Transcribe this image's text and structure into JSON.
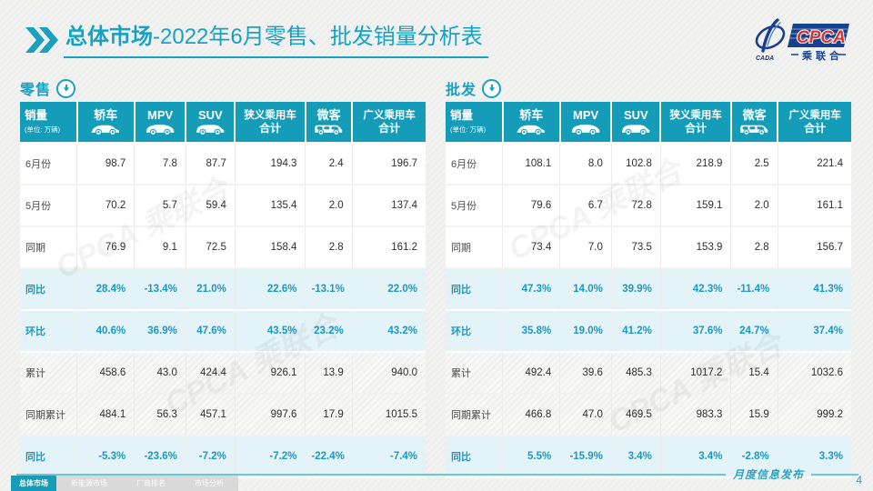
{
  "header": {
    "title_bold": "总体市场",
    "title_rest": "-2022年6月零售、批发销量分析表",
    "logo": {
      "cada": "CADA",
      "cpca": "CPCA",
      "subtitle": "乘联合"
    }
  },
  "watermark": {
    "text": "CPCA 乘联合"
  },
  "tables": [
    {
      "id": "retail",
      "section_label": "零售",
      "columns": [
        {
          "label": "销量",
          "sub": "(单位: 万辆)",
          "icon": null
        },
        {
          "label": "轿车",
          "icon": "sedan-icon"
        },
        {
          "label": "MPV",
          "icon": "mpv-icon"
        },
        {
          "label": "SUV",
          "icon": "suv-icon"
        },
        {
          "label": "狭义乘用车",
          "label2": "合计",
          "icon": null
        },
        {
          "label": "微客",
          "icon": "van-icon"
        },
        {
          "label": "广义乘用车",
          "label2": "合计",
          "icon": null
        }
      ],
      "rows": [
        {
          "label": "6月份",
          "style": "normal",
          "values": [
            "98.7",
            "7.8",
            "87.7",
            "194.3",
            "2.4",
            "196.7"
          ]
        },
        {
          "label": "5月份",
          "style": "normal",
          "values": [
            "70.2",
            "5.7",
            "59.4",
            "135.4",
            "2.0",
            "137.4"
          ]
        },
        {
          "label": "同期",
          "style": "normal",
          "values": [
            "76.9",
            "9.1",
            "72.5",
            "158.4",
            "2.8",
            "161.2"
          ]
        },
        {
          "label": "同比",
          "style": "percent",
          "values": [
            "28.4%",
            "-13.4%",
            "21.0%",
            "22.6%",
            "-13.1%",
            "22.0%"
          ]
        },
        {
          "label": "环比",
          "style": "percent",
          "values": [
            "40.6%",
            "36.9%",
            "47.6%",
            "43.5%",
            "23.2%",
            "43.2%"
          ]
        },
        {
          "label": "累计",
          "style": "shaded",
          "values": [
            "458.6",
            "43.0",
            "424.4",
            "926.1",
            "13.9",
            "940.0"
          ]
        },
        {
          "label": "同期累计",
          "style": "shaded",
          "values": [
            "484.1",
            "56.3",
            "457.1",
            "997.6",
            "17.9",
            "1015.5"
          ]
        },
        {
          "label": "同比",
          "style": "percent",
          "values": [
            "-5.3%",
            "-23.6%",
            "-7.2%",
            "-7.2%",
            "-22.4%",
            "-7.4%"
          ]
        }
      ]
    },
    {
      "id": "wholesale",
      "section_label": "批发",
      "columns": [
        {
          "label": "销量",
          "sub": "(单位: 万辆)",
          "icon": null
        },
        {
          "label": "轿车",
          "icon": "sedan-icon"
        },
        {
          "label": "MPV",
          "icon": "mpv-icon"
        },
        {
          "label": "SUV",
          "icon": "suv-icon"
        },
        {
          "label": "狭义乘用车",
          "label2": "合计",
          "icon": null
        },
        {
          "label": "微客",
          "icon": "van-icon"
        },
        {
          "label": "广义乘用车",
          "label2": "合计",
          "icon": null
        }
      ],
      "rows": [
        {
          "label": "6月份",
          "style": "normal",
          "values": [
            "108.1",
            "8.0",
            "102.8",
            "218.9",
            "2.5",
            "221.4"
          ]
        },
        {
          "label": "5月份",
          "style": "normal",
          "values": [
            "79.6",
            "6.7",
            "72.8",
            "159.1",
            "2.0",
            "161.1"
          ]
        },
        {
          "label": "同期",
          "style": "normal",
          "values": [
            "73.4",
            "7.0",
            "73.5",
            "153.9",
            "2.8",
            "156.7"
          ]
        },
        {
          "label": "同比",
          "style": "percent",
          "values": [
            "47.3%",
            "14.0%",
            "39.9%",
            "42.3%",
            "-11.4%",
            "41.3%"
          ]
        },
        {
          "label": "环比",
          "style": "percent",
          "values": [
            "35.8%",
            "19.0%",
            "41.2%",
            "37.6%",
            "24.7%",
            "37.4%"
          ]
        },
        {
          "label": "累计",
          "style": "shaded",
          "values": [
            "492.4",
            "39.6",
            "485.3",
            "1017.2",
            "15.4",
            "1032.6"
          ]
        },
        {
          "label": "同期累计",
          "style": "shaded",
          "values": [
            "466.8",
            "47.0",
            "469.5",
            "983.3",
            "15.9",
            "999.2"
          ]
        },
        {
          "label": "同比",
          "style": "percent",
          "values": [
            "5.5%",
            "-15.9%",
            "3.4%",
            "3.4%",
            "-2.8%",
            "3.3%"
          ]
        }
      ]
    }
  ],
  "footer": {
    "note": "月度信息发布",
    "page": "4",
    "tabs": [
      {
        "label": "总体市场",
        "active": true
      },
      {
        "label": "新能源市场",
        "active": false
      },
      {
        "label": "厂商排名",
        "active": false
      },
      {
        "label": "市场分析",
        "active": false
      }
    ]
  },
  "colors": {
    "teal": "#149CB8",
    "title_teal": "#17A2C3",
    "percent_text": "#1899C4",
    "light_row": "#E4F3F8",
    "logo_navy": "#17418E",
    "logo_red": "#D7342E",
    "tab_gray": "#D9D9D9"
  }
}
